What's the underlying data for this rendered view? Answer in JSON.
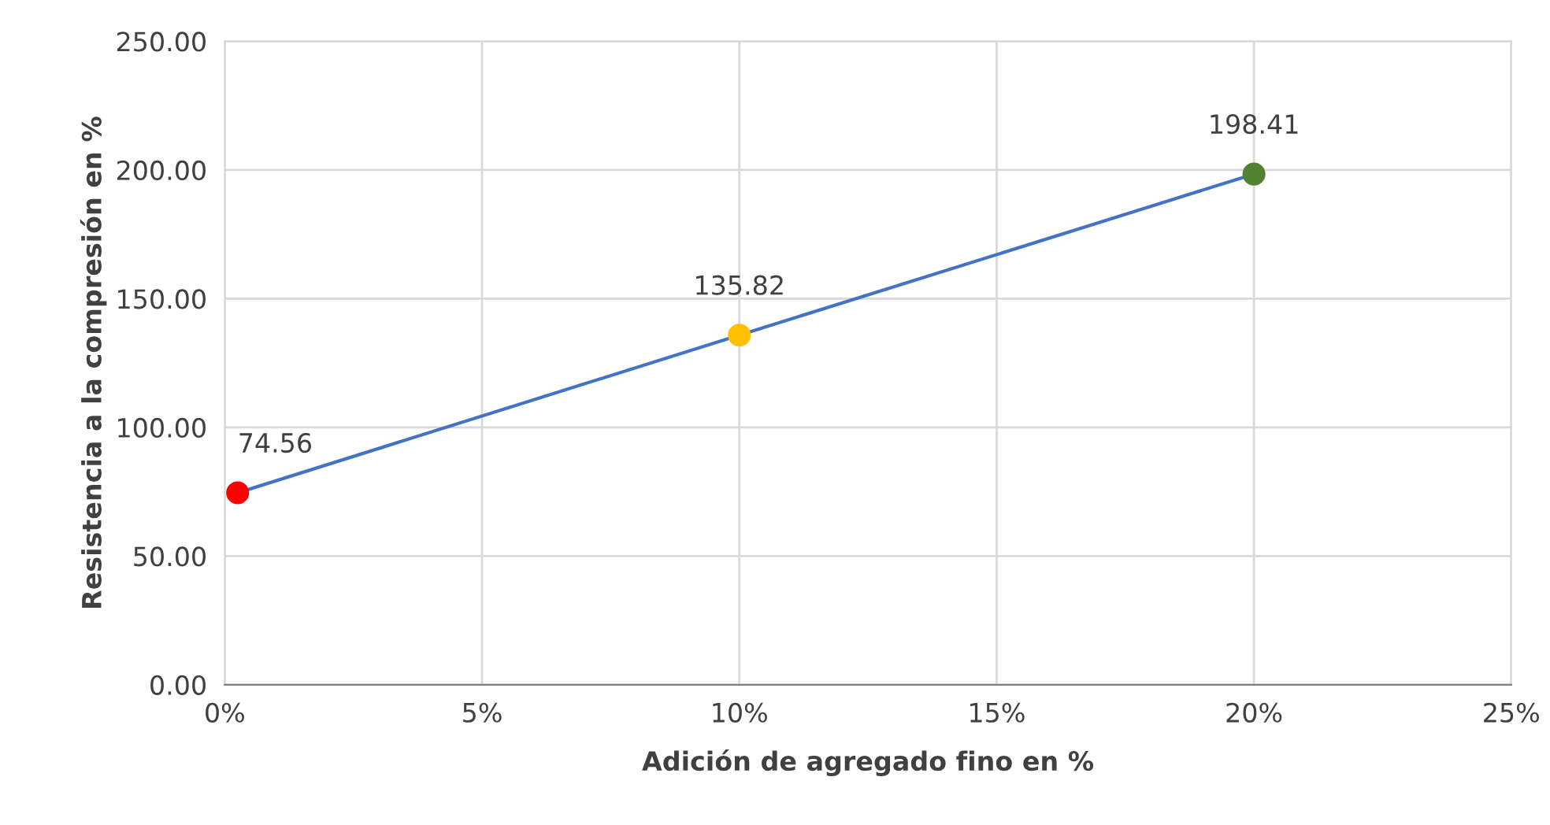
{
  "chart_data": {
    "type": "line",
    "xlabel": "Adición de agregado fino en %",
    "ylabel": "Resistencia a la compresión en %",
    "series": [
      {
        "color": "#4472c4",
        "x": [
          0.25,
          10,
          20
        ],
        "values": [
          74.56,
          135.82,
          198.41
        ],
        "colors": [
          "#ff0000",
          "#ffc000",
          "#548235"
        ],
        "value_labels": [
          "74.56",
          "135.82",
          "198.41"
        ]
      }
    ],
    "xlim": [
      0,
      25
    ],
    "xticks": [
      {
        "value": 0,
        "label": "0%"
      },
      {
        "value": 5,
        "label": "5%"
      },
      {
        "value": 10,
        "label": "10%"
      },
      {
        "value": 15,
        "label": "15%"
      },
      {
        "value": 20,
        "label": "20%"
      },
      {
        "value": 25,
        "label": "25%"
      }
    ],
    "ylim": [
      0,
      250
    ],
    "yticks": [
      {
        "value": 0,
        "label": "0.00"
      },
      {
        "value": 50,
        "label": "50.00"
      },
      {
        "value": 100,
        "label": "100.00"
      },
      {
        "value": 150,
        "label": "150.00"
      },
      {
        "value": 200,
        "label": "200.00"
      },
      {
        "value": 250,
        "label": "250.00"
      }
    ],
    "grid": true,
    "marker": "circle",
    "line_style": "solid"
  }
}
